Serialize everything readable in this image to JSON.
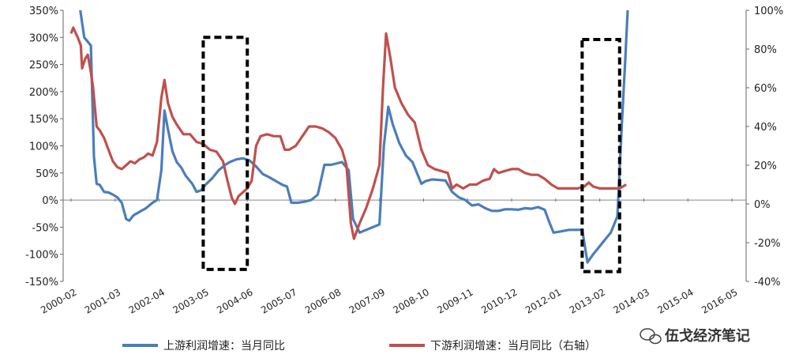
{
  "chart_data": {
    "type": "line",
    "x": [
      "2000-02",
      "2001-03",
      "2002-04",
      "2003-05",
      "2004-06",
      "2005-07",
      "2006-08",
      "2007-09",
      "2008-10",
      "2009-11",
      "2010-12",
      "2012-01",
      "2013-02",
      "2014-03",
      "2015-04",
      "2016-05"
    ],
    "y_left": {
      "ticks": [
        "350%",
        "300%",
        "250%",
        "200%",
        "150%",
        "100%",
        "50%",
        "0%",
        "-50%",
        "-100%",
        "-150%"
      ],
      "ylim": [
        -150,
        350
      ]
    },
    "y_right": {
      "ticks": [
        "100%",
        "80%",
        "60%",
        "40%",
        "20%",
        "0%",
        "-20%",
        "-40%"
      ],
      "ylim": [
        -40,
        100
      ]
    },
    "series": [
      {
        "name": "上游利润增速：当月同比",
        "axis": "left",
        "color": "#4a7ebb",
        "values": [
          [
            0.0,
            380
          ],
          [
            0.1,
            370
          ],
          [
            0.2,
            355
          ],
          [
            0.3,
            300
          ],
          [
            0.38,
            292
          ],
          [
            0.45,
            285
          ],
          [
            0.52,
            80
          ],
          [
            0.58,
            30
          ],
          [
            0.65,
            28
          ],
          [
            0.75,
            15
          ],
          [
            0.85,
            14
          ],
          [
            0.95,
            10
          ],
          [
            1.05,
            5
          ],
          [
            1.15,
            -5
          ],
          [
            1.25,
            -35
          ],
          [
            1.32,
            -38
          ],
          [
            1.42,
            -28
          ],
          [
            1.55,
            -22
          ],
          [
            1.7,
            -15
          ],
          [
            1.85,
            -5
          ],
          [
            1.95,
            0
          ],
          [
            2.05,
            55
          ],
          [
            2.12,
            165
          ],
          [
            2.2,
            130
          ],
          [
            2.3,
            90
          ],
          [
            2.4,
            70
          ],
          [
            2.5,
            60
          ],
          [
            2.6,
            45
          ],
          [
            2.75,
            30
          ],
          [
            2.85,
            15
          ],
          [
            2.95,
            18
          ],
          [
            3.05,
            28
          ],
          [
            3.2,
            40
          ],
          [
            3.35,
            55
          ],
          [
            3.5,
            65
          ],
          [
            3.6,
            70
          ],
          [
            3.75,
            75
          ],
          [
            3.9,
            77
          ],
          [
            4.05,
            73
          ],
          [
            4.2,
            62
          ],
          [
            4.35,
            48
          ],
          [
            4.5,
            42
          ],
          [
            4.65,
            35
          ],
          [
            4.8,
            28
          ],
          [
            4.9,
            25
          ],
          [
            5.0,
            -5
          ],
          [
            5.15,
            -5
          ],
          [
            5.3,
            -3
          ],
          [
            5.45,
            0
          ],
          [
            5.6,
            10
          ],
          [
            5.75,
            65
          ],
          [
            5.9,
            65
          ],
          [
            6.05,
            68
          ],
          [
            6.15,
            70
          ],
          [
            6.3,
            55
          ],
          [
            6.4,
            -35
          ],
          [
            6.55,
            -60
          ],
          [
            6.7,
            -55
          ],
          [
            6.85,
            -50
          ],
          [
            7.0,
            -45
          ],
          [
            7.1,
            100
          ],
          [
            7.2,
            172
          ],
          [
            7.3,
            140
          ],
          [
            7.45,
            105
          ],
          [
            7.6,
            82
          ],
          [
            7.75,
            70
          ],
          [
            7.85,
            50
          ],
          [
            7.95,
            30
          ],
          [
            8.05,
            35
          ],
          [
            8.2,
            38
          ],
          [
            8.35,
            37
          ],
          [
            8.5,
            36
          ],
          [
            8.65,
            15
          ],
          [
            8.8,
            5
          ],
          [
            8.95,
            0
          ],
          [
            9.1,
            -10
          ],
          [
            9.25,
            -8
          ],
          [
            9.4,
            -15
          ],
          [
            9.55,
            -20
          ],
          [
            9.7,
            -20
          ],
          [
            9.85,
            -17
          ],
          [
            10.0,
            -17
          ],
          [
            10.15,
            -18
          ],
          [
            10.3,
            -15
          ],
          [
            10.45,
            -16
          ],
          [
            10.6,
            -13
          ],
          [
            10.75,
            -18
          ],
          [
            10.85,
            -40
          ],
          [
            10.95,
            -60
          ],
          [
            11.1,
            -58
          ],
          [
            11.3,
            -55
          ],
          [
            11.5,
            -55
          ],
          [
            11.6,
            -55
          ],
          [
            11.72,
            -115
          ],
          [
            11.85,
            -100
          ],
          [
            12.0,
            -85
          ],
          [
            12.15,
            -70
          ],
          [
            12.25,
            -60
          ],
          [
            12.4,
            -30
          ],
          [
            12.5,
            140
          ],
          [
            12.58,
            260
          ],
          [
            12.65,
            380
          ]
        ]
      },
      {
        "name": "下游利润增速：当月同比（右轴）",
        "axis": "right",
        "color": "#c0504d",
        "values": [
          [
            0.0,
            88
          ],
          [
            0.05,
            91
          ],
          [
            0.15,
            86
          ],
          [
            0.22,
            82
          ],
          [
            0.25,
            70
          ],
          [
            0.32,
            75
          ],
          [
            0.38,
            77
          ],
          [
            0.45,
            68
          ],
          [
            0.5,
            60
          ],
          [
            0.58,
            40
          ],
          [
            0.65,
            38
          ],
          [
            0.75,
            34
          ],
          [
            0.85,
            28
          ],
          [
            0.95,
            22
          ],
          [
            1.05,
            19
          ],
          [
            1.15,
            18
          ],
          [
            1.25,
            20
          ],
          [
            1.35,
            22
          ],
          [
            1.45,
            21
          ],
          [
            1.55,
            23
          ],
          [
            1.65,
            24
          ],
          [
            1.75,
            26
          ],
          [
            1.85,
            25
          ],
          [
            1.95,
            32
          ],
          [
            2.05,
            55
          ],
          [
            2.12,
            64
          ],
          [
            2.2,
            52
          ],
          [
            2.3,
            45
          ],
          [
            2.4,
            41
          ],
          [
            2.55,
            36
          ],
          [
            2.7,
            36
          ],
          [
            2.85,
            32
          ],
          [
            3.0,
            31
          ],
          [
            3.15,
            28
          ],
          [
            3.3,
            27
          ],
          [
            3.45,
            22
          ],
          [
            3.55,
            12
          ],
          [
            3.65,
            3
          ],
          [
            3.72,
            0
          ],
          [
            3.8,
            4
          ],
          [
            3.9,
            6
          ],
          [
            4.0,
            8
          ],
          [
            4.1,
            12
          ],
          [
            4.2,
            30
          ],
          [
            4.3,
            35
          ],
          [
            4.45,
            36
          ],
          [
            4.6,
            35
          ],
          [
            4.75,
            35
          ],
          [
            4.85,
            28
          ],
          [
            4.95,
            28
          ],
          [
            5.1,
            30
          ],
          [
            5.25,
            35
          ],
          [
            5.4,
            40
          ],
          [
            5.55,
            40
          ],
          [
            5.7,
            39
          ],
          [
            5.85,
            37
          ],
          [
            6.0,
            34
          ],
          [
            6.15,
            28
          ],
          [
            6.25,
            20
          ],
          [
            6.35,
            -10
          ],
          [
            6.42,
            -18
          ],
          [
            6.55,
            -10
          ],
          [
            6.7,
            -2
          ],
          [
            6.85,
            8
          ],
          [
            7.0,
            20
          ],
          [
            7.08,
            60
          ],
          [
            7.15,
            88
          ],
          [
            7.25,
            75
          ],
          [
            7.35,
            60
          ],
          [
            7.5,
            52
          ],
          [
            7.65,
            46
          ],
          [
            7.8,
            42
          ],
          [
            7.95,
            28
          ],
          [
            8.1,
            20
          ],
          [
            8.25,
            18
          ],
          [
            8.4,
            17
          ],
          [
            8.55,
            16
          ],
          [
            8.65,
            8
          ],
          [
            8.75,
            10
          ],
          [
            8.9,
            8
          ],
          [
            9.05,
            10
          ],
          [
            9.2,
            10
          ],
          [
            9.35,
            12
          ],
          [
            9.5,
            13
          ],
          [
            9.6,
            18
          ],
          [
            9.7,
            16
          ],
          [
            9.85,
            17
          ],
          [
            10.0,
            18
          ],
          [
            10.15,
            18
          ],
          [
            10.3,
            16
          ],
          [
            10.45,
            15
          ],
          [
            10.6,
            15
          ],
          [
            10.75,
            13
          ],
          [
            10.9,
            10
          ],
          [
            11.05,
            8
          ],
          [
            11.2,
            8
          ],
          [
            11.35,
            8
          ],
          [
            11.5,
            8
          ],
          [
            11.65,
            9
          ],
          [
            11.75,
            11
          ],
          [
            11.85,
            9
          ],
          [
            12.0,
            8
          ],
          [
            12.15,
            8
          ],
          [
            12.3,
            8
          ],
          [
            12.45,
            8
          ],
          [
            12.6,
            10
          ]
        ]
      }
    ],
    "annotations": [
      {
        "type": "dashed-box",
        "x_range": [
          3.0,
          4.0
        ],
        "y_range_left": [
          -128,
          300
        ]
      },
      {
        "type": "dashed-box",
        "x_range": [
          11.6,
          12.45
        ],
        "y_range_left": [
          -132,
          296
        ]
      }
    ],
    "legend": {
      "position": "bottom"
    },
    "grid": false
  },
  "legend": {
    "upstream_label": "上游利润增速：当月同比",
    "downstream_label": "下游利润增速：当月同比（右轴）"
  },
  "watermark": {
    "text": "伍戈经济笔记",
    "icon": "wechat-icon"
  }
}
